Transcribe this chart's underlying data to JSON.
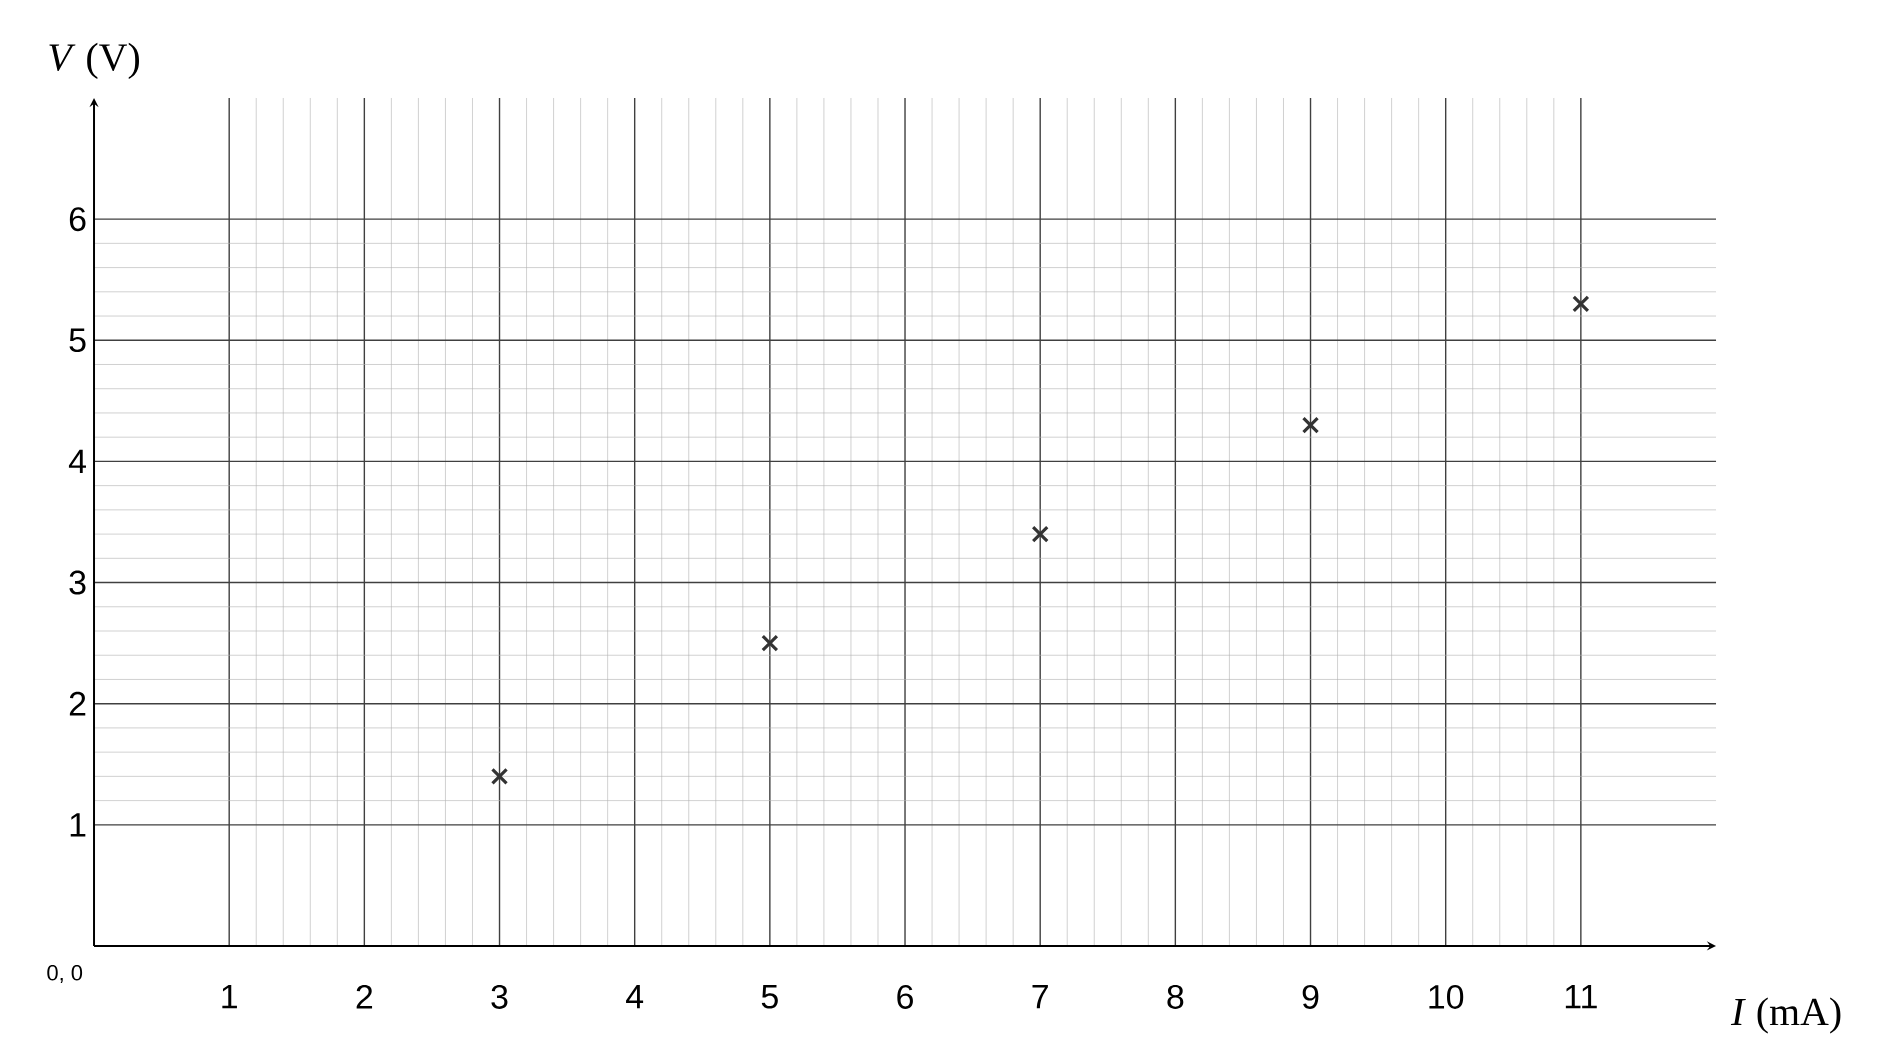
{
  "chart_data": {
    "type": "scatter",
    "xlabel": "*I* (mA)",
    "ylabel": "*V* (V)",
    "x": [
      3,
      5,
      7,
      9,
      11
    ],
    "values": [
      1.4,
      2.5,
      3.4,
      4.3,
      5.3
    ],
    "color": "#333333",
    "marker": "cross",
    "xlim": [
      0,
      12
    ],
    "ylim": [
      0,
      7
    ],
    "xticks": [
      1,
      2,
      3,
      4,
      5,
      6,
      7,
      8,
      9,
      10,
      11
    ],
    "yticks": [
      1,
      2,
      3,
      4,
      5,
      6
    ],
    "grid": true,
    "annotations": [
      "0, 0"
    ]
  }
}
